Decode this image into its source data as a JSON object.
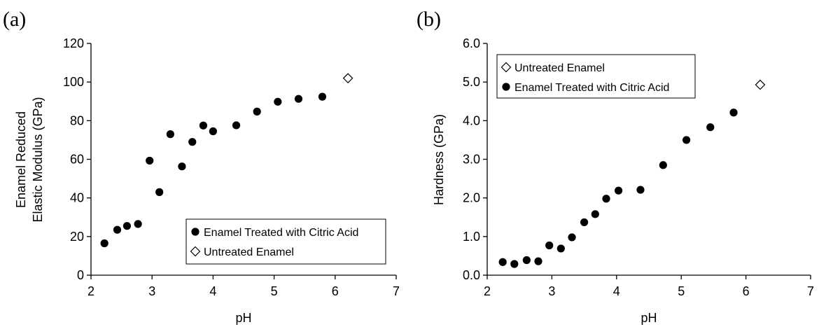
{
  "chart_data": [
    {
      "type": "scatter",
      "panel_label": "(a)",
      "xlabel": "pH",
      "ylabel_lines": [
        "Enamel Reduced",
        "Elastic Modulus (GPa)"
      ],
      "xlim": [
        2,
        7
      ],
      "ylim": [
        0,
        120
      ],
      "x_ticks": [
        2,
        3,
        4,
        5,
        6,
        7
      ],
      "x_tick_labels": [
        "2",
        "3",
        "4",
        "5",
        "6",
        "7"
      ],
      "y_ticks": [
        0,
        20,
        40,
        60,
        80,
        100,
        120
      ],
      "y_tick_labels": [
        "0",
        "20",
        "40",
        "60",
        "80",
        "100",
        "120"
      ],
      "legend_position": "bottom-right",
      "series": [
        {
          "name": "Enamel Treated with Citric Acid",
          "marker": "filled-circle",
          "points": [
            [
              2.22,
              16.5
            ],
            [
              2.43,
              23.5
            ],
            [
              2.59,
              25.5
            ],
            [
              2.77,
              26.5
            ],
            [
              2.96,
              59.3
            ],
            [
              3.12,
              43
            ],
            [
              3.3,
              73
            ],
            [
              3.49,
              56.3
            ],
            [
              3.66,
              69
            ],
            [
              3.84,
              77.5
            ],
            [
              4.0,
              74.5
            ],
            [
              4.38,
              77.6
            ],
            [
              4.72,
              84.7
            ],
            [
              5.06,
              89.8
            ],
            [
              5.4,
              91.3
            ],
            [
              5.79,
              92.4
            ]
          ]
        },
        {
          "name": "Untreated Enamel",
          "marker": "open-diamond",
          "points": [
            [
              6.21,
              102
            ]
          ]
        }
      ]
    },
    {
      "type": "scatter",
      "panel_label": "(b)",
      "xlabel": "pH",
      "ylabel_lines": [
        "Hardness (GPa)"
      ],
      "xlim": [
        2,
        7
      ],
      "ylim": [
        0,
        6
      ],
      "x_ticks": [
        2,
        3,
        4,
        5,
        6,
        7
      ],
      "x_tick_labels": [
        "2",
        "3",
        "4",
        "5",
        "6",
        "7"
      ],
      "y_ticks": [
        0,
        1,
        2,
        3,
        4,
        5,
        6
      ],
      "y_tick_labels": [
        "0.0",
        "1.0",
        "2.0",
        "3.0",
        "4.0",
        "5.0",
        "6.0"
      ],
      "legend_position": "top-left",
      "series": [
        {
          "name": "Untreated Enamel",
          "marker": "open-diamond",
          "points": [
            [
              6.22,
              4.93
            ]
          ]
        },
        {
          "name": "Enamel Treated with Citric Acid",
          "marker": "filled-circle",
          "points": [
            [
              2.24,
              0.34
            ],
            [
              2.42,
              0.29
            ],
            [
              2.61,
              0.39
            ],
            [
              2.79,
              0.36
            ],
            [
              2.96,
              0.77
            ],
            [
              3.14,
              0.69
            ],
            [
              3.31,
              0.98
            ],
            [
              3.5,
              1.37
            ],
            [
              3.67,
              1.58
            ],
            [
              3.84,
              1.98
            ],
            [
              4.03,
              2.19
            ],
            [
              4.37,
              2.21
            ],
            [
              4.72,
              2.85
            ],
            [
              5.08,
              3.5
            ],
            [
              5.45,
              3.83
            ],
            [
              5.81,
              4.21
            ]
          ]
        }
      ]
    }
  ]
}
